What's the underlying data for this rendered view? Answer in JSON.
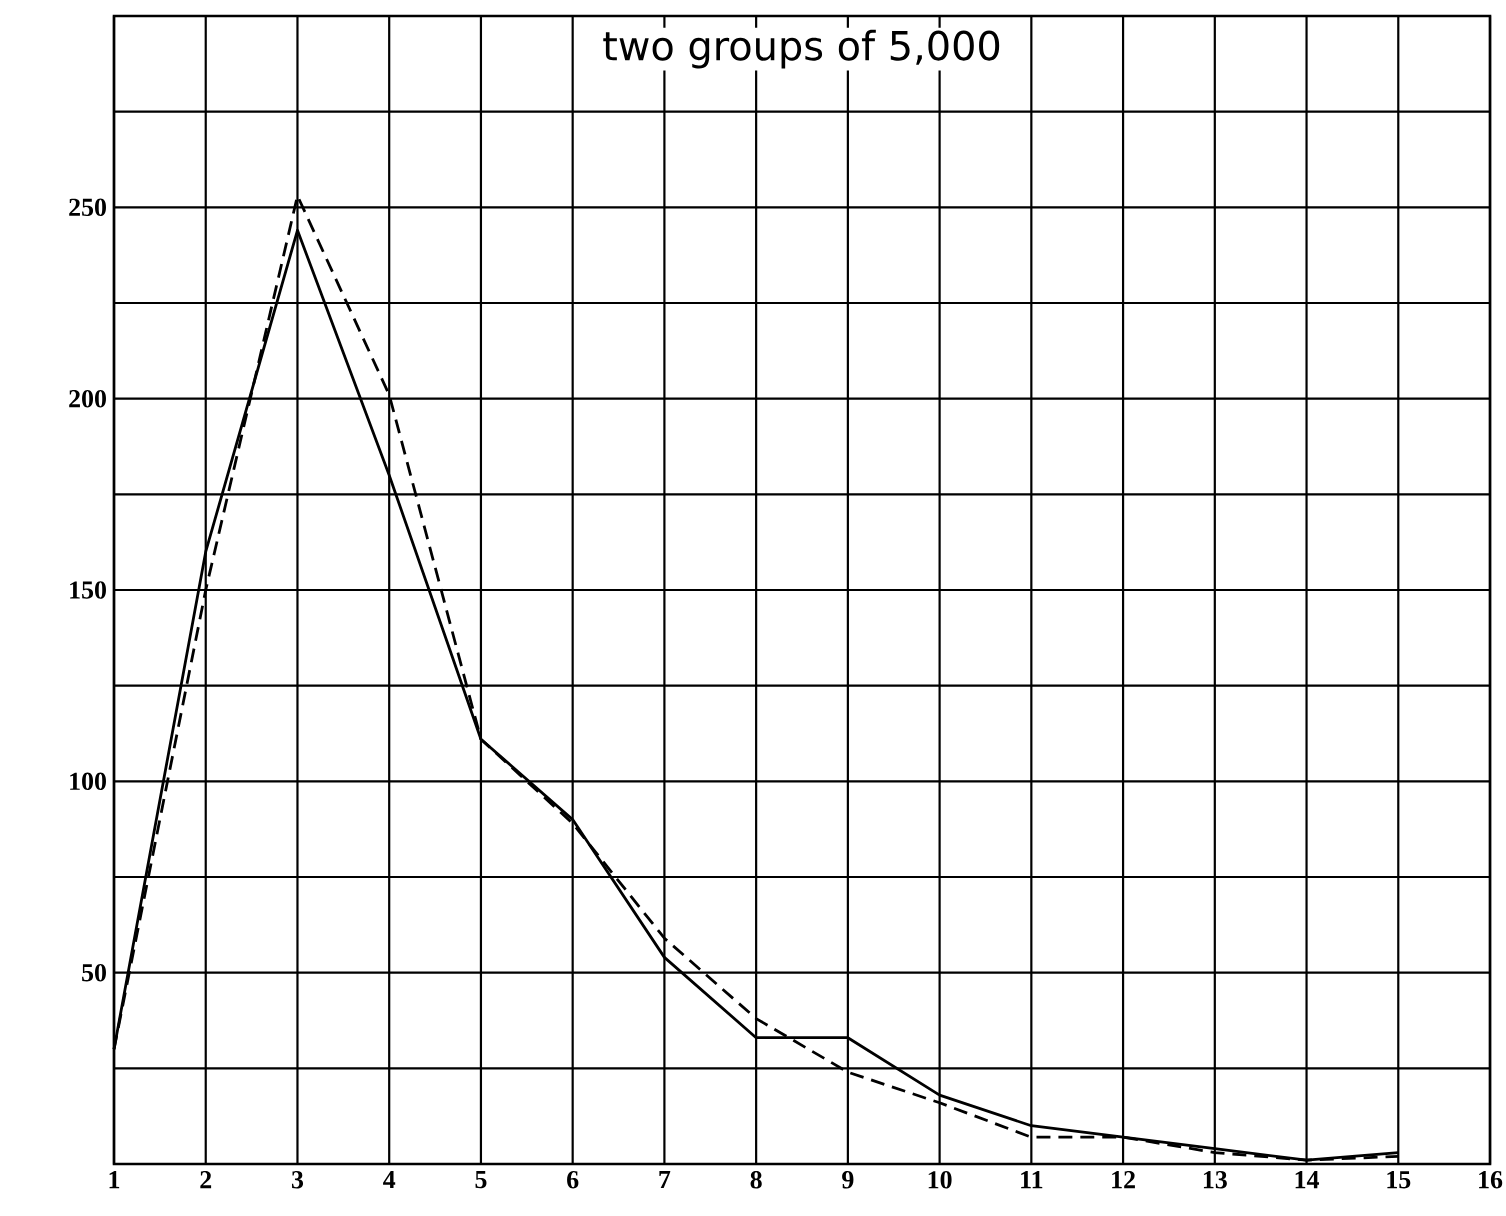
{
  "chart_data": {
    "type": "line",
    "title": "two groups of 5,000",
    "x": [
      1,
      2,
      3,
      4,
      5,
      6,
      7,
      8,
      9,
      10,
      11,
      12,
      13,
      14,
      15
    ],
    "series": [
      {
        "color": "#000000",
        "line_style": "solid",
        "values": [
          30,
          160,
          244,
          180,
          111,
          90,
          54,
          33,
          33,
          18,
          10,
          7,
          4,
          1,
          3
        ]
      },
      {
        "color": "#000000",
        "line_style": "dashed",
        "values": [
          30,
          150,
          253,
          201,
          111,
          89,
          59,
          38,
          24,
          16,
          7,
          7,
          3,
          1,
          2
        ]
      }
    ],
    "xlim": [
      1,
      16
    ],
    "xticks": [
      1,
      2,
      3,
      4,
      5,
      6,
      7,
      8,
      9,
      10,
      11,
      12,
      13,
      14,
      15,
      16
    ],
    "ylim": [
      0,
      300
    ],
    "yticks": [
      {
        "value": 0,
        "label": null
      },
      {
        "value": 25,
        "label": null
      },
      50,
      {
        "value": 75,
        "label": null
      },
      100,
      {
        "value": 125,
        "label": null
      },
      150,
      {
        "value": 175,
        "label": null
      },
      200,
      {
        "value": 225,
        "label": null
      },
      250,
      {
        "value": 275,
        "label": null
      },
      {
        "value": 300,
        "label": null
      }
    ],
    "grid": true,
    "marker": "none"
  }
}
